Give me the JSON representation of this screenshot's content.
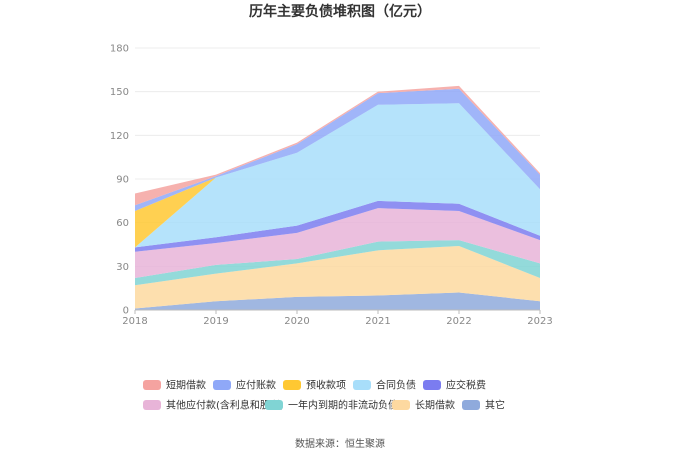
{
  "chart_data": {
    "type": "area",
    "stacked": true,
    "title": "历年主要负债堆积图（亿元）",
    "x": [
      "2018",
      "2019",
      "2020",
      "2021",
      "2022",
      "2023"
    ],
    "ylim": [
      0,
      180
    ],
    "yticks": [
      "0",
      "30",
      "60",
      "90",
      "120",
      "150",
      "180"
    ],
    "grid": true,
    "legend_position": "bottom",
    "series": [
      {
        "name": "其它",
        "color": "#8faadc",
        "values": [
          1,
          6,
          9,
          10,
          12,
          6
        ]
      },
      {
        "name": "长期借款",
        "color": "#fdd9a0",
        "values": [
          16,
          19,
          23,
          31,
          32,
          16
        ]
      },
      {
        "name": "一年内到期的非流动负债",
        "color": "#80d4d4",
        "values": [
          5,
          6,
          3,
          6,
          4,
          10
        ]
      },
      {
        "name": "其他应付款(含利息和股利)",
        "color": "#e8b4d8",
        "values": [
          18,
          15,
          18,
          23,
          20,
          16
        ]
      },
      {
        "name": "应交税费",
        "color": "#7b7cf0",
        "values": [
          3,
          4,
          5,
          5,
          5,
          3
        ]
      },
      {
        "name": "合同负债",
        "color": "#a8defa",
        "values": [
          0,
          41,
          50,
          66,
          69,
          32
        ]
      },
      {
        "name": "预收款项",
        "color": "#ffc832",
        "values": [
          25,
          0,
          0,
          0,
          0,
          0
        ]
      },
      {
        "name": "应付账款",
        "color": "#8fa8f8",
        "values": [
          4,
          1,
          6,
          8,
          10,
          10
        ]
      },
      {
        "name": "短期借款",
        "color": "#f5a3a0",
        "values": [
          8,
          1,
          1,
          1,
          2,
          1
        ]
      }
    ],
    "legend_order": [
      "短期借款",
      "应付账款",
      "预收款项",
      "合同负债",
      "应交税费",
      "其他应付款(含利息和股利)",
      "一年内到期的非流动负债",
      "长期借款",
      "其它"
    ]
  },
  "source": "数据来源：恒生聚源"
}
